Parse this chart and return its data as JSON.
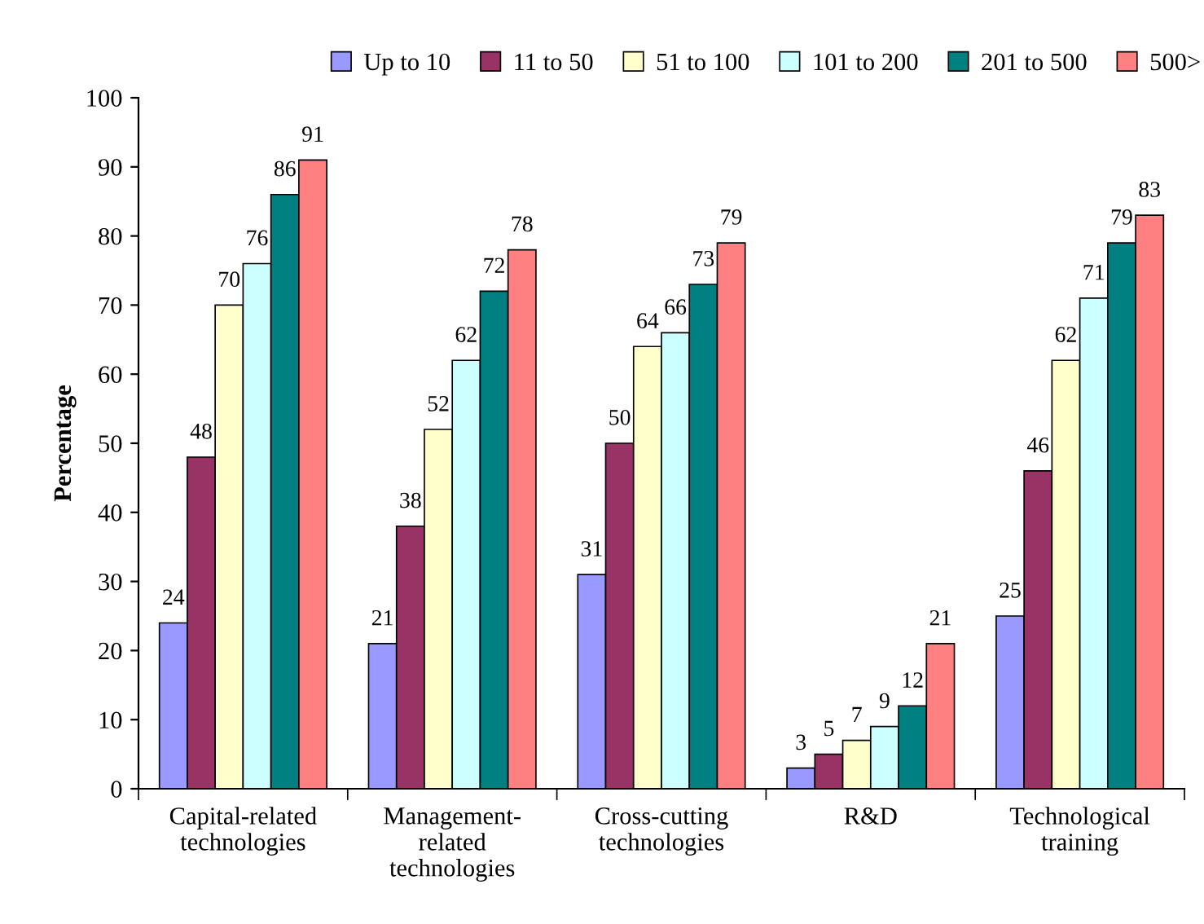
{
  "chart_data": {
    "type": "bar",
    "ylabel": "Percentage",
    "categories": [
      "Capital-related\ntechnologies",
      "Management-\nrelated\ntechnologies",
      "Cross-cutting\ntechnologies",
      "R&D",
      "Technological\ntraining"
    ],
    "series": [
      {
        "name": "Up to 10",
        "color": "#9999ff",
        "values": [
          24,
          21,
          31,
          3,
          25
        ]
      },
      {
        "name": "11 to 50",
        "color": "#993366",
        "values": [
          48,
          38,
          50,
          5,
          46
        ]
      },
      {
        "name": "51 to 100",
        "color": "#ffffcc",
        "values": [
          70,
          52,
          64,
          7,
          62
        ]
      },
      {
        "name": "101 to 200",
        "color": "#ccffff",
        "values": [
          76,
          62,
          66,
          9,
          71
        ]
      },
      {
        "name": "201 to 500",
        "color": "#008080",
        "values": [
          86,
          72,
          73,
          12,
          79
        ]
      },
      {
        "name": "500>",
        "color": "#ff8080",
        "values": [
          91,
          78,
          79,
          21,
          83
        ]
      }
    ],
    "ylim": [
      0,
      100
    ],
    "yticks": [
      0,
      10,
      20,
      30,
      40,
      50,
      60,
      70,
      80,
      90,
      100
    ],
    "grid": false,
    "legend": "top",
    "data_labels": true
  }
}
